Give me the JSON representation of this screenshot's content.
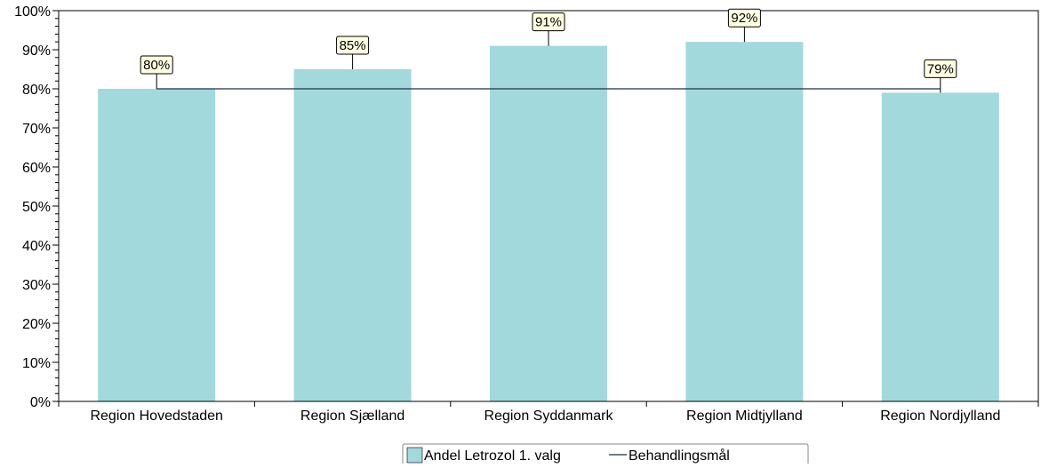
{
  "chart_data": {
    "type": "bar",
    "categories": [
      "Region Hovedstaden",
      "Region Sjælland",
      "Region Syddanmark",
      "Region Midtjylland",
      "Region Nordjylland"
    ],
    "series": [
      {
        "name": "Andel Letrozol 1. valg",
        "type": "bar",
        "values": [
          80,
          85,
          91,
          92,
          79
        ]
      },
      {
        "name": "Behandlingsmål",
        "type": "line",
        "values": [
          80,
          80,
          80,
          80,
          80
        ]
      }
    ],
    "data_labels": [
      "80%",
      "85%",
      "91%",
      "92%",
      "79%"
    ],
    "ylim": [
      0,
      100
    ],
    "y_ticks": [
      0,
      10,
      20,
      30,
      40,
      50,
      60,
      70,
      80,
      90,
      100
    ],
    "y_tick_labels": [
      "0%",
      "10%",
      "20%",
      "30%",
      "40%",
      "50%",
      "60%",
      "70%",
      "80%",
      "90%",
      "100%"
    ],
    "title": "",
    "xlabel": "",
    "ylabel": "",
    "grid": false,
    "legend_position": "bottom",
    "colors": {
      "bar": "#a2d9dc",
      "target_line": "#1f2f4a",
      "label_bg": "#ffffe1",
      "axis": "#000000"
    }
  }
}
